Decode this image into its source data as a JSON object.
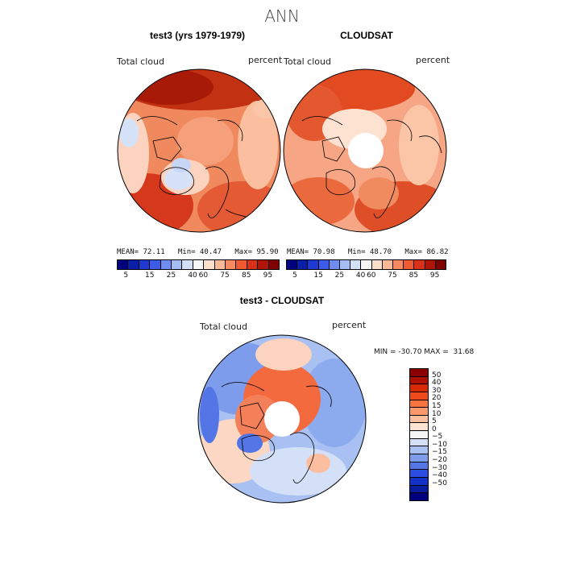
{
  "figure": {
    "title": "ANN"
  },
  "panel_left": {
    "title": "test3 (yrs 1979-1979)",
    "variable": "Total cloud",
    "units": "percent",
    "stats": {
      "mean_label": "MEAN=",
      "mean": "72.11",
      "min_label": "Min=",
      "min": "40.47",
      "max_label": "Max=",
      "max": "95.90"
    }
  },
  "panel_right": {
    "title": "CLOUDSAT",
    "variable": "Total cloud",
    "units": "percent",
    "stats": {
      "mean_label": "MEAN=",
      "mean": "70.98",
      "min_label": "Min=",
      "min": "48.70",
      "max_label": "Max=",
      "max": "86.82"
    }
  },
  "panel_diff": {
    "title": "test3 - CLOUDSAT",
    "variable": "Total cloud",
    "units": "percent",
    "stats_text": "MIN = -30.70 MAX =  31.68"
  },
  "colorbar_main": {
    "ticks": [
      "5",
      "15",
      "25",
      "40",
      "60",
      "75",
      "85",
      "95"
    ],
    "colors": [
      "#00007f",
      "#0a1fa8",
      "#1e3ad0",
      "#3c5ce8",
      "#6f8cf0",
      "#a5bdf5",
      "#d3e0fa",
      "#f7f7f7",
      "#fde0cc",
      "#fcb996",
      "#f88a62",
      "#ef5a33",
      "#d9301a",
      "#b01608",
      "#7f0000"
    ]
  },
  "colorbar_diff": {
    "ticks": [
      "50",
      "40",
      "30",
      "20",
      "15",
      "10",
      "5",
      "0",
      "−5",
      "−10",
      "−15",
      "−20",
      "−30",
      "−40",
      "−50"
    ],
    "colors": [
      "#8b0000",
      "#b01000",
      "#d82a00",
      "#ee4a1c",
      "#f7743f",
      "#fa9a6c",
      "#fcbfa0",
      "#fde3d2",
      "#f5f5f5",
      "#d4e0f8",
      "#a8c0f2",
      "#7d9cec",
      "#5475e6",
      "#2c4ee0",
      "#1330c8",
      "#0a1ca0",
      "#00007f"
    ]
  }
}
